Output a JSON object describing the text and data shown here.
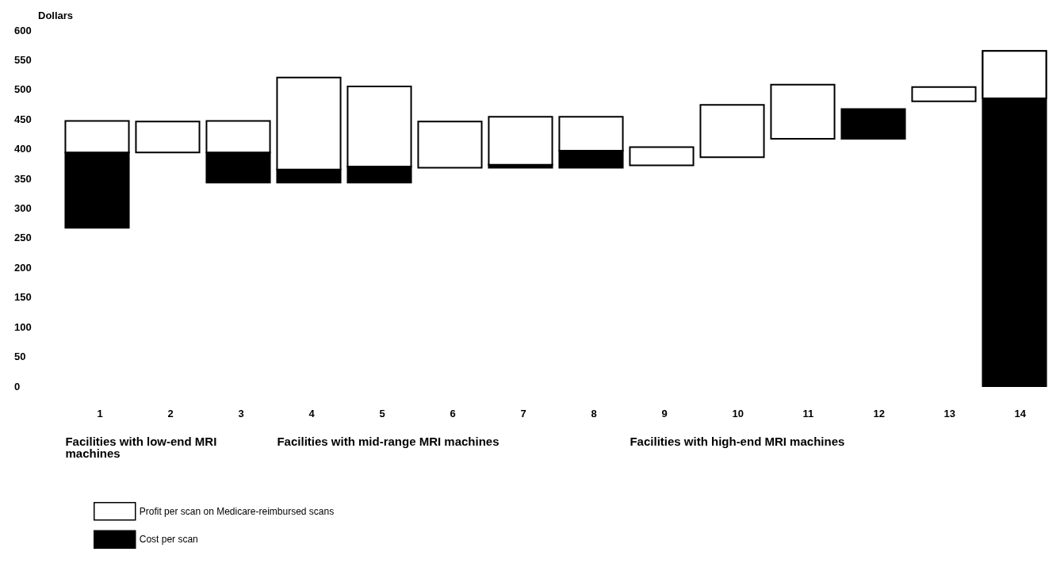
{
  "chart_data": {
    "type": "bar",
    "ylabel": "Dollars",
    "categories": [
      "1",
      "2",
      "3",
      "4",
      "5",
      "6",
      "7",
      "8",
      "9",
      "10",
      "11",
      "12",
      "13",
      "14"
    ],
    "ylim": [
      0,
      600
    ],
    "yticks": [
      0,
      50,
      100,
      150,
      200,
      250,
      300,
      350,
      400,
      450,
      500,
      550,
      600
    ],
    "grid": false,
    "legend": "bottom left",
    "series": [
      {
        "name": "Profit per scan on Medicare-reimbursed scans",
        "color": "#ffffff",
        "base": [
          394,
          394,
          394,
          365,
          370,
          368,
          373,
          397,
          372,
          386,
          417,
          null,
          480,
          485
        ],
        "values": [
          53,
          52,
          53,
          155,
          135,
          78,
          81,
          57,
          31,
          88,
          91,
          null,
          24,
          80
        ]
      },
      {
        "name": "Cost per scan",
        "color": "#000000",
        "base": [
          267,
          null,
          343,
          343,
          343,
          null,
          368,
          368,
          null,
          null,
          null,
          417,
          null,
          0
        ],
        "values": [
          127,
          null,
          51,
          22,
          27,
          null,
          5,
          29,
          null,
          null,
          null,
          50,
          null,
          565
        ]
      }
    ],
    "annotations": [
      "Facilities with low-end MRI machines",
      "Facilities with mid-range MRI machines",
      "Facilities with high-end MRI machines"
    ]
  }
}
